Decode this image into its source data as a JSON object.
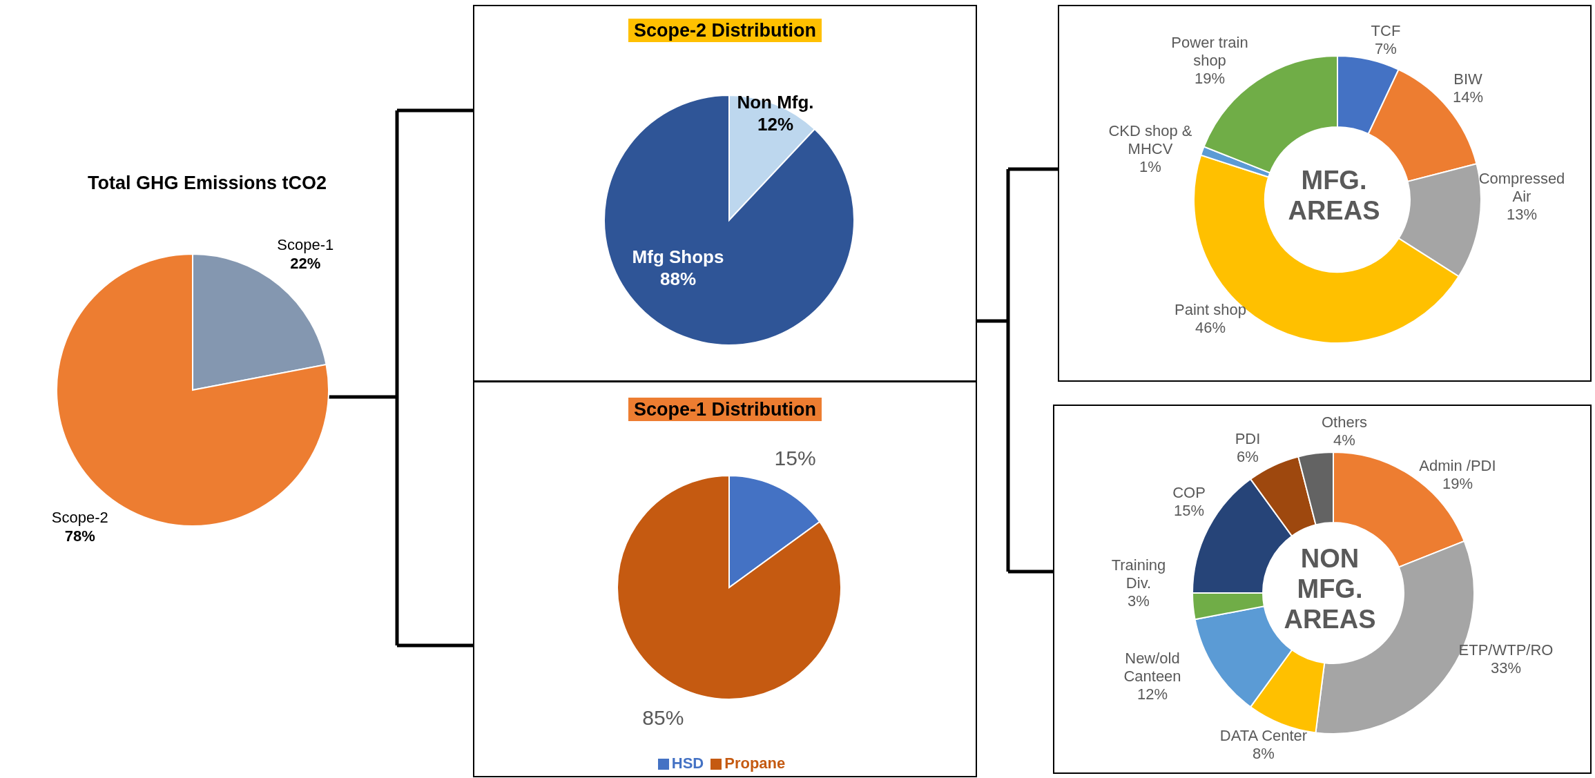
{
  "chart_data": [
    {
      "type": "pie",
      "title": "Total GHG Emissions tCO2",
      "categories": [
        "Scope-1",
        "Scope-2"
      ],
      "values": [
        22,
        78
      ],
      "colors": [
        "#8497b0",
        "#ed7d31"
      ],
      "value_labels": [
        "22%",
        "78%"
      ],
      "legend": false
    },
    {
      "type": "pie",
      "title": "Scope-2 Distribution",
      "categories": [
        "Non Mfg.",
        "Mfg Shops"
      ],
      "values": [
        12,
        88
      ],
      "colors": [
        "#bdd7ee",
        "#2f5597"
      ],
      "value_labels": [
        "12%",
        "88%"
      ],
      "legend": false
    },
    {
      "type": "pie",
      "title": "Scope-1 Distribution",
      "categories": [
        "HSD",
        "Propane"
      ],
      "values": [
        15,
        85
      ],
      "colors": [
        "#4472c4",
        "#c55a11"
      ],
      "value_labels": [
        "15%",
        "85%"
      ],
      "legend": "bottom"
    },
    {
      "type": "donut",
      "title": "MFG. AREAS",
      "categories": [
        "TCF",
        "BIW",
        "Compressed Air",
        "Paint shop",
        "CKD shop & MHCV",
        "Power train shop"
      ],
      "values": [
        7,
        14,
        13,
        46,
        1,
        19
      ],
      "colors": [
        "#4472c4",
        "#ed7d31",
        "#a5a5a5",
        "#ffc000",
        "#5b9bd5",
        "#70ad47"
      ],
      "value_labels": [
        "7%",
        "14%",
        "13%",
        "46%",
        "1%",
        "19%"
      ],
      "legend": false
    },
    {
      "type": "donut",
      "title": "NON MFG. AREAS",
      "categories": [
        "Admin /PDI",
        "ETP/WTP/RO",
        "DATA Center",
        "New/old Canteen",
        "Training Div.",
        "COP",
        "PDI",
        "Others"
      ],
      "values": [
        19,
        33,
        8,
        12,
        3,
        15,
        6,
        4
      ],
      "colors": [
        "#ed7d31",
        "#a5a5a5",
        "#ffc000",
        "#5b9bd5",
        "#70ad47",
        "#264478",
        "#9e480e",
        "#636363"
      ],
      "value_labels": [
        "19%",
        "33%",
        "8%",
        "12%",
        "3%",
        "15%",
        "6%",
        "4%"
      ],
      "legend": false
    }
  ]
}
